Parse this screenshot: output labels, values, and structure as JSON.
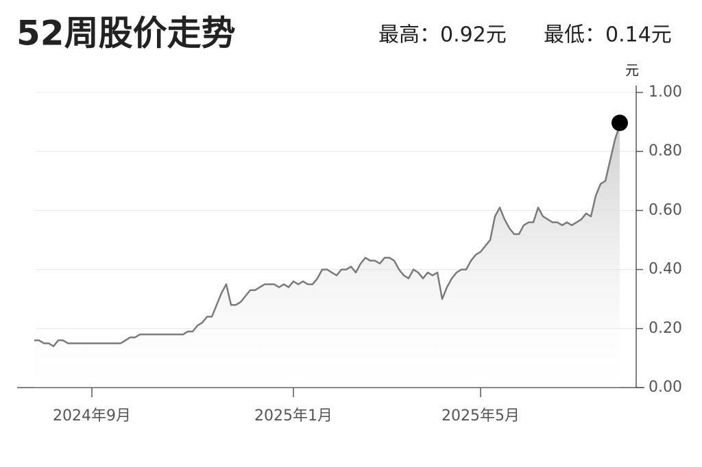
{
  "chart_data": {
    "type": "line",
    "title": "52周股价走势",
    "subtitle_high": "最高：0.92元",
    "subtitle_low": "最低：0.14元",
    "y_unit": "元",
    "categories": [
      null,
      null,
      null,
      null,
      null,
      null,
      null,
      null,
      null,
      null,
      null,
      null,
      "2024年9月",
      null,
      null,
      null,
      null,
      null,
      null,
      null,
      null,
      null,
      null,
      null,
      null,
      null,
      null,
      null,
      null,
      null,
      null,
      null,
      null,
      null,
      null,
      null,
      null,
      null,
      null,
      null,
      null,
      null,
      null,
      null,
      null,
      null,
      null,
      null,
      null,
      null,
      null,
      null,
      null,
      null,
      "2025年1月",
      null,
      null,
      null,
      null,
      null,
      null,
      null,
      null,
      null,
      null,
      null,
      null,
      null,
      null,
      null,
      null,
      null,
      null,
      null,
      null,
      null,
      null,
      null,
      null,
      null,
      null,
      null,
      null,
      null,
      null,
      null,
      null,
      null,
      null,
      null,
      null,
      null,
      null,
      "2025年5月",
      null,
      null,
      null,
      null,
      null,
      null,
      null,
      null,
      null,
      null,
      null,
      null,
      null,
      null,
      null,
      null,
      null,
      null,
      null,
      null,
      null,
      null,
      null,
      null,
      null,
      null,
      null,
      null,
      null
    ],
    "series": [
      {
        "name": "股价",
        "color": "#7a7a7a",
        "values": [
          0.16,
          0.16,
          0.15,
          0.15,
          0.14,
          0.16,
          0.16,
          0.15,
          0.15,
          0.15,
          0.15,
          0.15,
          0.15,
          0.15,
          0.15,
          0.15,
          0.15,
          0.15,
          0.15,
          0.16,
          0.17,
          0.17,
          0.18,
          0.18,
          0.18,
          0.18,
          0.18,
          0.18,
          0.18,
          0.18,
          0.18,
          0.18,
          0.19,
          0.19,
          0.21,
          0.22,
          0.24,
          0.24,
          0.28,
          0.32,
          0.35,
          0.28,
          0.28,
          0.29,
          0.31,
          0.33,
          0.33,
          0.34,
          0.35,
          0.35,
          0.35,
          0.34,
          0.35,
          0.34,
          0.36,
          0.35,
          0.36,
          0.35,
          0.35,
          0.37,
          0.4,
          0.4,
          0.39,
          0.38,
          0.4,
          0.4,
          0.41,
          0.39,
          0.42,
          0.44,
          0.43,
          0.43,
          0.42,
          0.44,
          0.44,
          0.43,
          0.4,
          0.38,
          0.37,
          0.4,
          0.39,
          0.37,
          0.39,
          0.38,
          0.39,
          0.3,
          0.34,
          0.37,
          0.39,
          0.4,
          0.4,
          0.43,
          0.45,
          0.46,
          0.48,
          0.5,
          0.58,
          0.61,
          0.57,
          0.54,
          0.52,
          0.52,
          0.55,
          0.56,
          0.56,
          0.61,
          0.58,
          0.57,
          0.56,
          0.56,
          0.55,
          0.56,
          0.55,
          0.56,
          0.57,
          0.59,
          0.58,
          0.65,
          0.69,
          0.7,
          0.77,
          0.84,
          0.89
        ]
      }
    ],
    "ylim": [
      0,
      1
    ],
    "yticks": [
      {
        "value": 0,
        "label": "0.00"
      },
      {
        "value": 0.2,
        "label": "0.20"
      },
      {
        "value": 0.4,
        "label": "0.40"
      },
      {
        "value": 0.6,
        "label": "0.60"
      },
      {
        "value": 0.8,
        "label": "0.80"
      },
      {
        "value": 1,
        "label": "1.00"
      }
    ],
    "grid": true
  }
}
